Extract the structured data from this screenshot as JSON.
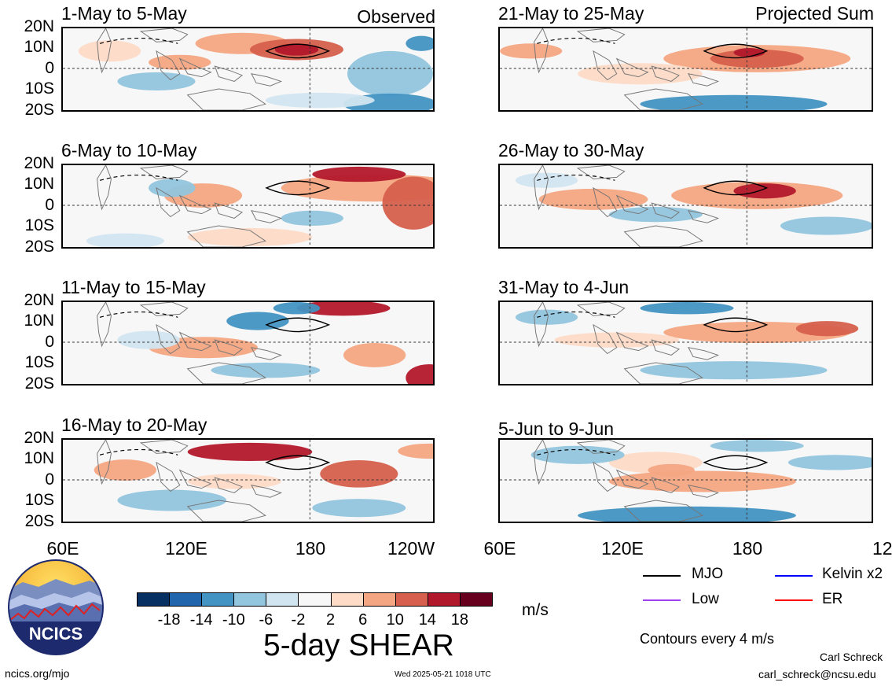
{
  "panels_left_header": "Observed",
  "panels_right_header": "Projected Sum",
  "panels": [
    {
      "title": "1-May to 5-May"
    },
    {
      "title": "6-May to 10-May"
    },
    {
      "title": "11-May to 15-May"
    },
    {
      "title": "16-May to 20-May"
    },
    {
      "title": "21-May to 25-May"
    },
    {
      "title": "26-May to 30-May"
    },
    {
      "title": "31-May to 4-Jun"
    },
    {
      "title": "5-Jun to 9-Jun"
    }
  ],
  "lat_labels": [
    "20N",
    "10N",
    "0",
    "10S",
    "20S"
  ],
  "lon_labels": [
    "60E",
    "120E",
    "180",
    "120W"
  ],
  "colorbar": {
    "colors": [
      "#053061",
      "#2166ac",
      "#4393c3",
      "#92c5de",
      "#d1e5f0",
      "#f7f7f7",
      "#fddbc7",
      "#f4a582",
      "#d6604d",
      "#b2182b",
      "#67001f"
    ],
    "labels": [
      "-18",
      "-14",
      "-10",
      "-6",
      "-2",
      "2",
      "6",
      "10",
      "14",
      "18"
    ],
    "units": "m/s",
    "title": "5-day SHEAR"
  },
  "legend": {
    "items": [
      {
        "label": "MJO",
        "color": "#000000"
      },
      {
        "label": "Kelvin x2",
        "color": "#0000ff"
      },
      {
        "label": "Low",
        "color": "#a040f0"
      },
      {
        "label": "ER",
        "color": "#ff0000"
      }
    ],
    "contour_note": "Contours every 4 m/s"
  },
  "logo_text": "NCICS",
  "footer": {
    "left": "ncics.org/mjo",
    "center": "Wed 2025-05-21 1018 UTC",
    "author": "Carl Schreck",
    "email": "carl_schreck@ncsu.edu"
  }
}
